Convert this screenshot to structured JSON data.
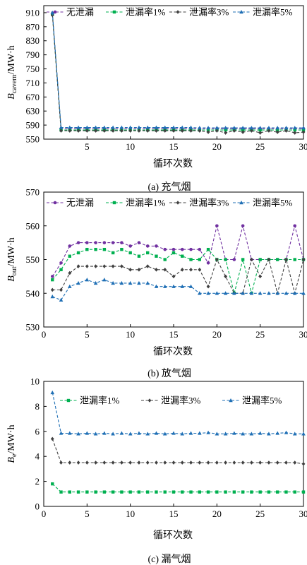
{
  "chart_data": [
    {
      "type": "line",
      "caption": "(a) 充气烟",
      "ylabel": "B_cavern/MW·h",
      "ylabel_main": "B",
      "ylabel_sub": "cavern",
      "ylabel_unit": "/MW·h",
      "xlabel": "循环次数",
      "xlim": [
        0,
        30
      ],
      "ylim": [
        550,
        930
      ],
      "xticks": [
        "5",
        "10",
        "15",
        "20",
        "25",
        "30"
      ],
      "yticks": [
        "550",
        "590",
        "630",
        "670",
        "710",
        "750",
        "790",
        "830",
        "870",
        "910"
      ],
      "x": [
        1,
        2,
        3,
        4,
        5,
        6,
        7,
        8,
        9,
        10,
        11,
        12,
        13,
        14,
        15,
        16,
        17,
        18,
        19,
        20,
        21,
        22,
        23,
        24,
        25,
        26,
        27,
        28,
        29,
        30
      ],
      "legend": "top",
      "series": [
        {
          "name": "无泄漏",
          "color": "#7030a0",
          "values": [
            908,
            580,
            580,
            580,
            580,
            580,
            580,
            580,
            580,
            580,
            580,
            580,
            580,
            580,
            580,
            580,
            580,
            580,
            580,
            580,
            580,
            580,
            580,
            580,
            580,
            580,
            580,
            580,
            580,
            580
          ]
        },
        {
          "name": "泄漏率1%",
          "color": "#00b050",
          "values": [
            905,
            576,
            576,
            576,
            576,
            576,
            576,
            576,
            576,
            576,
            576,
            576,
            576,
            576,
            576,
            576,
            576,
            576,
            576,
            576,
            576,
            576,
            576,
            576,
            576,
            576,
            576,
            576,
            576,
            576
          ]
        },
        {
          "name": "泄漏率3%",
          "color": "#404040",
          "values": [
            903,
            574,
            574,
            574,
            574,
            574,
            574,
            574,
            574,
            574,
            574,
            574,
            574,
            574,
            574,
            574,
            574,
            574,
            570,
            574,
            568,
            574,
            570,
            574,
            568,
            574,
            570,
            574,
            568,
            570
          ]
        },
        {
          "name": "泄漏率5%",
          "color": "#1f6fb5",
          "values": [
            910,
            583,
            583,
            583,
            583,
            583,
            583,
            583,
            583,
            583,
            583,
            583,
            583,
            583,
            583,
            583,
            583,
            582,
            582,
            582,
            582,
            582,
            582,
            582,
            582,
            582,
            582,
            582,
            582,
            582
          ]
        }
      ]
    },
    {
      "type": "line",
      "caption": "(b) 放气烟",
      "ylabel": "B_out/MW·h",
      "ylabel_main": "B",
      "ylabel_sub": "out",
      "ylabel_unit": "/MW·h",
      "xlabel": "循环次数",
      "xlim": [
        0,
        30
      ],
      "ylim": [
        530,
        570
      ],
      "xticks": [
        "0",
        "5",
        "10",
        "15",
        "20",
        "25",
        "30"
      ],
      "yticks": [
        "530",
        "540",
        "550",
        "560",
        "570"
      ],
      "x": [
        1,
        2,
        3,
        4,
        5,
        6,
        7,
        8,
        9,
        10,
        11,
        12,
        13,
        14,
        15,
        16,
        17,
        18,
        19,
        20,
        21,
        22,
        23,
        24,
        25,
        26,
        27,
        28,
        29,
        30
      ],
      "legend": "top",
      "series": [
        {
          "name": "无泄漏",
          "color": "#7030a0",
          "values": [
            545,
            549,
            554,
            555,
            555,
            555,
            555,
            555,
            555,
            554,
            555,
            554,
            554,
            553,
            553,
            553,
            553,
            553,
            549,
            560,
            550,
            550,
            560,
            550,
            550,
            550,
            550,
            550,
            560,
            550
          ]
        },
        {
          "name": "泄漏率1%",
          "color": "#00b050",
          "values": [
            544,
            547,
            551,
            552,
            553,
            553,
            553,
            552,
            553,
            552,
            551,
            552,
            551,
            550,
            552,
            551,
            550,
            550,
            553,
            550,
            550,
            540,
            550,
            540,
            550,
            550,
            550,
            550,
            550,
            550
          ]
        },
        {
          "name": "泄漏率3%",
          "color": "#404040",
          "values": [
            541,
            541,
            546,
            548,
            548,
            548,
            548,
            548,
            548,
            547,
            547,
            548,
            547,
            547,
            545,
            547,
            547,
            547,
            542,
            550,
            545,
            540,
            540,
            550,
            545,
            550,
            540,
            550,
            540,
            550
          ]
        },
        {
          "name": "泄漏率5%",
          "color": "#1f6fb5",
          "values": [
            539,
            538,
            542,
            543,
            544,
            543,
            544,
            543,
            543,
            543,
            543,
            543,
            542,
            542,
            542,
            542,
            542,
            540,
            540,
            540,
            540,
            540,
            540,
            540,
            540,
            540,
            540,
            540,
            540,
            540
          ]
        }
      ]
    },
    {
      "type": "line",
      "caption": "(c) 漏气烟",
      "ylabel": "B_e/MW·h",
      "ylabel_main": "B",
      "ylabel_sub": "e",
      "ylabel_unit": "/MW·h",
      "xlabel": "循环次数",
      "xlim": [
        0,
        30
      ],
      "ylim": [
        0,
        10
      ],
      "xticks": [
        "0",
        "5",
        "10",
        "15",
        "20",
        "25",
        "30"
      ],
      "yticks": [
        "0",
        "2",
        "4",
        "6",
        "8",
        "10"
      ],
      "x": [
        1,
        2,
        3,
        4,
        5,
        6,
        7,
        8,
        9,
        10,
        11,
        12,
        13,
        14,
        15,
        16,
        17,
        18,
        19,
        20,
        21,
        22,
        23,
        24,
        25,
        26,
        27,
        28,
        29,
        30
      ],
      "legend": "top",
      "series": [
        {
          "name": "泄漏率1%",
          "color": "#00b050",
          "values": [
            1.8,
            1.15,
            1.15,
            1.15,
            1.15,
            1.15,
            1.15,
            1.15,
            1.15,
            1.15,
            1.15,
            1.15,
            1.15,
            1.15,
            1.15,
            1.15,
            1.15,
            1.15,
            1.15,
            1.15,
            1.15,
            1.15,
            1.15,
            1.15,
            1.15,
            1.15,
            1.15,
            1.15,
            1.15,
            1.15
          ]
        },
        {
          "name": "泄漏率3%",
          "color": "#404040",
          "values": [
            5.4,
            3.5,
            3.5,
            3.5,
            3.5,
            3.5,
            3.5,
            3.5,
            3.5,
            3.5,
            3.5,
            3.5,
            3.5,
            3.5,
            3.5,
            3.5,
            3.5,
            3.5,
            3.5,
            3.5,
            3.5,
            3.5,
            3.5,
            3.5,
            3.5,
            3.5,
            3.5,
            3.5,
            3.5,
            3.4
          ]
        },
        {
          "name": "泄漏率5%",
          "color": "#1f6fb5",
          "values": [
            9.1,
            5.85,
            5.85,
            5.8,
            5.85,
            5.8,
            5.85,
            5.8,
            5.85,
            5.8,
            5.85,
            5.8,
            5.85,
            5.8,
            5.85,
            5.8,
            5.85,
            5.85,
            5.9,
            5.8,
            5.8,
            5.85,
            5.8,
            5.8,
            5.85,
            5.8,
            5.85,
            5.9,
            5.8,
            5.8
          ]
        }
      ]
    }
  ]
}
